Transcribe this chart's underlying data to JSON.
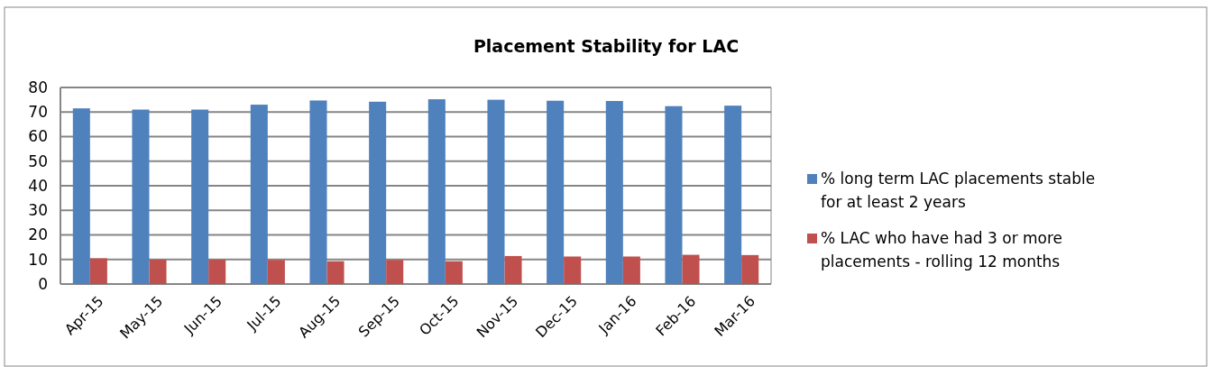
{
  "chart_data": {
    "type": "bar",
    "title": "Placement Stability for LAC",
    "categories": [
      "Apr-15",
      "May-15",
      "Jun-15",
      "Jul-15",
      "Aug-15",
      "Sep-15",
      "Oct-15",
      "Nov-15",
      "Dec-15",
      "Jan-16",
      "Feb-16",
      "Mar-16"
    ],
    "series": [
      {
        "name": "% long term LAC placements stable for at least 2 years",
        "color": "#4f81bd",
        "values": [
          71.5,
          71,
          71,
          73,
          74.7,
          74.2,
          75.2,
          75,
          74.6,
          74.5,
          72.4,
          72.6
        ]
      },
      {
        "name": "% LAC who have had 3 or more placements - rolling 12 months",
        "color": "#c0504d",
        "values": [
          10.5,
          9.9,
          9.9,
          9.8,
          9.3,
          9.8,
          9.3,
          11.4,
          11.2,
          11.2,
          11.9,
          11.8
        ]
      }
    ],
    "ylim": [
      0,
      80
    ],
    "yticks": [
      0,
      10,
      20,
      30,
      40,
      50,
      60,
      70,
      80
    ],
    "grid": "y",
    "legend": "right"
  }
}
